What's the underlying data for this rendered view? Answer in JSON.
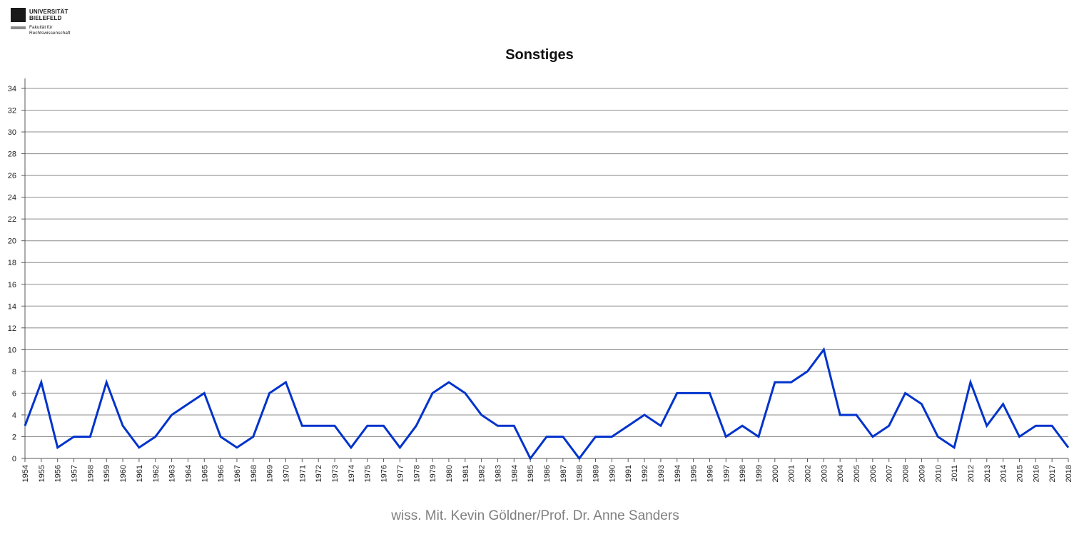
{
  "logo": {
    "name_line1": "UNIVERSITÄT",
    "name_line2": "BIELEFELD",
    "faculty_line1": "Fakultät für",
    "faculty_line2": "Rechtswissenschaft"
  },
  "footer": "wiss. Mit. Kevin Göldner/Prof.  Dr. Anne Sanders",
  "colors": {
    "line": "#0033cc",
    "grid": "#8c8c8c",
    "axis": "#595959"
  },
  "chart_data": {
    "type": "line",
    "title": "Sonstiges",
    "xlabel": "",
    "ylabel": "",
    "ylim": [
      0,
      34
    ],
    "ytick_step": 2,
    "grid": true,
    "legend": "none",
    "categories": [
      "1954",
      "1955",
      "1956",
      "1957",
      "1958",
      "1959",
      "1960",
      "1961",
      "1962",
      "1963",
      "1964",
      "1965",
      "1966",
      "1967",
      "1968",
      "1969",
      "1970",
      "1971",
      "1972",
      "1973",
      "1974",
      "1975",
      "1976",
      "1977",
      "1978",
      "1979",
      "1980",
      "1981",
      "1982",
      "1983",
      "1984",
      "1985",
      "1986",
      "1987",
      "1988",
      "1989",
      "1990",
      "1991",
      "1992",
      "1993",
      "1994",
      "1995",
      "1996",
      "1997",
      "1998",
      "1999",
      "2000",
      "2001",
      "2002",
      "2003",
      "2004",
      "2005",
      "2006",
      "2007",
      "2008",
      "2009",
      "2010",
      "2011",
      "2012",
      "2013",
      "2014",
      "2015",
      "2016",
      "2017",
      "2018"
    ],
    "values": [
      3,
      7,
      1,
      2,
      2,
      7,
      3,
      1,
      2,
      4,
      5,
      6,
      2,
      1,
      2,
      6,
      7,
      3,
      3,
      3,
      1,
      3,
      3,
      1,
      3,
      6,
      7,
      6,
      4,
      3,
      3,
      0,
      2,
      2,
      0,
      2,
      2,
      3,
      4,
      3,
      6,
      6,
      6,
      2,
      3,
      2,
      7,
      7,
      8,
      10,
      4,
      4,
      2,
      3,
      6,
      5,
      2,
      1,
      7,
      3,
      5,
      2,
      3,
      3,
      1
    ]
  }
}
